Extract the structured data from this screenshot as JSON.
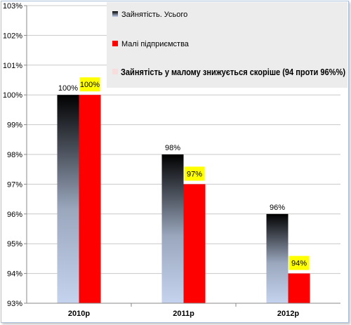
{
  "chart_data": {
    "type": "bar",
    "categories": [
      "2010р",
      "2011р",
      "2012р"
    ],
    "series": [
      {
        "name": "Зайнятість. Усього",
        "values": [
          100,
          98,
          96
        ],
        "labels": [
          "100%",
          "98%",
          "96%"
        ],
        "color_top": "#000000",
        "color_bottom": "#c5d3ee"
      },
      {
        "name": "Малі підприємства",
        "values": [
          100,
          97,
          94
        ],
        "labels": [
          "100%",
          "97%",
          "94%"
        ],
        "color": "#ff0000",
        "label_bg": "#ffff00"
      }
    ],
    "y_ticks": [
      "93%",
      "94%",
      "95%",
      "96%",
      "97%",
      "98%",
      "99%",
      "100%",
      "101%",
      "102%",
      "103%"
    ],
    "ylim": [
      93,
      103
    ],
    "grid": true,
    "legend_position": "top-right",
    "legend_note": "Зайнятість у малому знижується скоріше (94 проти 96%%)"
  }
}
